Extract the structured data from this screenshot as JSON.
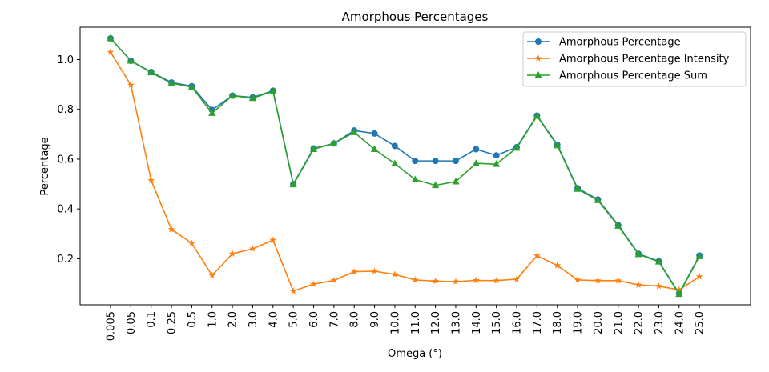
{
  "chart_data": {
    "type": "line",
    "title": "Amorphous Percentages",
    "xlabel": "Omega (°)",
    "ylabel": "Percentage",
    "categories": [
      "0.005",
      "0.05",
      "0.1",
      "0.25",
      "0.5",
      "1.0",
      "2.0",
      "3.0",
      "4.0",
      "5.0",
      "6.0",
      "7.0",
      "8.0",
      "9.0",
      "10.0",
      "11.0",
      "12.0",
      "13.0",
      "14.0",
      "15.0",
      "16.0",
      "17.0",
      "18.0",
      "19.0",
      "20.0",
      "21.0",
      "22.0",
      "23.0",
      "24.0",
      "25.0"
    ],
    "ylim": [
      0.015,
      1.13
    ],
    "yticks": [
      "0.2",
      "0.4",
      "0.6",
      "0.8",
      "1.0"
    ],
    "grid": false,
    "legend_position": "top-right",
    "series": [
      {
        "name": "Amorphous Percentage",
        "color": "#1f77b4",
        "marker": "circle",
        "values": [
          1.085,
          0.995,
          0.95,
          0.908,
          0.893,
          0.798,
          0.855,
          0.848,
          0.875,
          0.5,
          0.643,
          0.663,
          0.715,
          0.703,
          0.653,
          0.593,
          0.593,
          0.593,
          0.64,
          0.615,
          0.648,
          0.775,
          0.658,
          0.483,
          0.438,
          0.335,
          0.22,
          0.19,
          0.06,
          0.213
        ]
      },
      {
        "name": "Amorphous Percentage Intensity",
        "color": "#ff7f0e",
        "marker": "star",
        "values": [
          1.03,
          0.898,
          0.515,
          0.318,
          0.262,
          0.133,
          0.22,
          0.24,
          0.275,
          0.07,
          0.098,
          0.113,
          0.148,
          0.15,
          0.137,
          0.115,
          0.11,
          0.108,
          0.113,
          0.112,
          0.118,
          0.212,
          0.173,
          0.115,
          0.112,
          0.112,
          0.095,
          0.09,
          0.075,
          0.128
        ]
      },
      {
        "name": "Amorphous Percentage Sum",
        "color": "#2ca02c",
        "marker": "triangle",
        "values": [
          1.085,
          0.995,
          0.948,
          0.905,
          0.89,
          0.785,
          0.855,
          0.845,
          0.873,
          0.498,
          0.64,
          0.663,
          0.708,
          0.64,
          0.582,
          0.518,
          0.495,
          0.51,
          0.583,
          0.58,
          0.645,
          0.773,
          0.655,
          0.48,
          0.435,
          0.332,
          0.218,
          0.188,
          0.058,
          0.21
        ]
      }
    ]
  }
}
